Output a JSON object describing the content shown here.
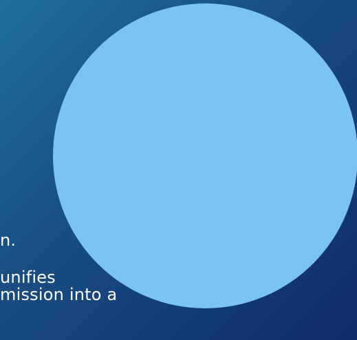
{
  "slide": {
    "background_colors": [
      "#1f7099",
      "#1a5286",
      "#143f78",
      "#0f2c66"
    ],
    "circle_color": "#7bc4f0",
    "text_lines": [
      "n.",
      "unifies",
      "mission into a"
    ]
  }
}
